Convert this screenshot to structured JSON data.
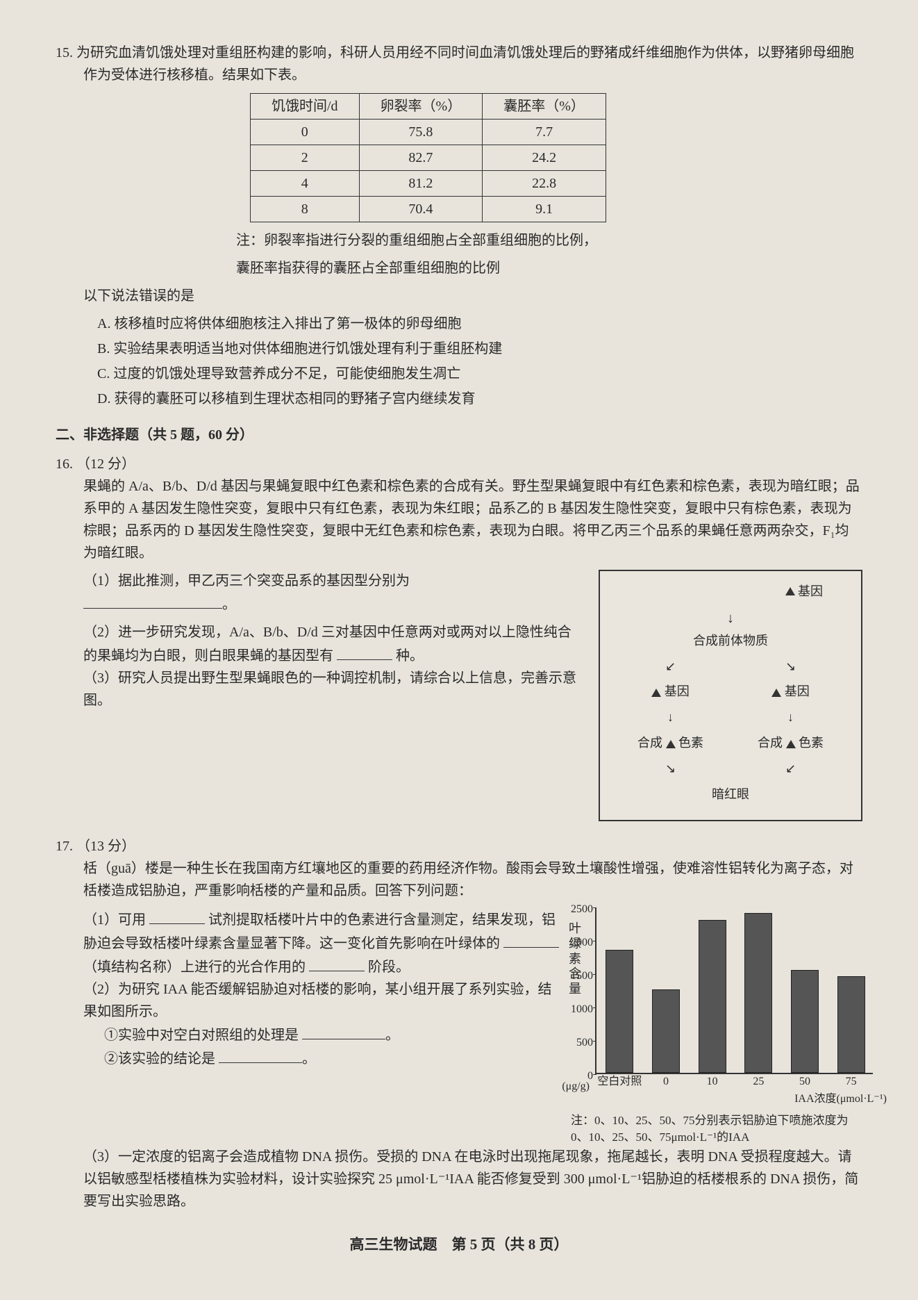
{
  "q15": {
    "number": "15.",
    "text": "为研究血清饥饿处理对重组胚构建的影响，科研人员用经不同时间血清饥饿处理后的野猪成纤维细胞作为供体，以野猪卵母细胞作为受体进行核移植。结果如下表。",
    "table": {
      "headers": [
        "饥饿时间/d",
        "卵裂率（%）",
        "囊胚率（%）"
      ],
      "rows": [
        [
          "0",
          "75.8",
          "7.7"
        ],
        [
          "2",
          "82.7",
          "24.2"
        ],
        [
          "4",
          "81.2",
          "22.8"
        ],
        [
          "8",
          "70.4",
          "9.1"
        ]
      ]
    },
    "note1": "注：卵裂率指进行分裂的重组细胞占全部重组细胞的比例，",
    "note2": "囊胚率指获得的囊胚占全部重组细胞的比例",
    "question": "以下说法错误的是",
    "options": {
      "A": "A. 核移植时应将供体细胞核注入排出了第一极体的卵母细胞",
      "B": "B. 实验结果表明适当地对供体细胞进行饥饿处理有利于重组胚构建",
      "C": "C. 过度的饥饿处理导致营养成分不足，可能使细胞发生凋亡",
      "D": "D. 获得的囊胚可以移植到生理状态相同的野猪子宫内继续发育"
    }
  },
  "section2": "二、非选择题（共 5 题，60 分）",
  "q16": {
    "number": "16.",
    "points": "（12 分）",
    "text": "果蝇的 A/a、B/b、D/d 基因与果蝇复眼中红色素和棕色素的合成有关。野生型果蝇复眼中有红色素和棕色素，表现为暗红眼；品系甲的 A 基因发生隐性突变，复眼中只有红色素，表现为朱红眼；品系乙的 B 基因发生隐性突变，复眼中只有棕色素，表现为棕眼；品系丙的 D 基因发生隐性突变，复眼中无红色素和棕色素，表现为白眼。将甲乙丙三个品系的果蝇任意两两杂交，F₁均为暗红眼。",
    "sub1_label": "（1）",
    "sub1": "据此推测，甲乙丙三个突变品系的基因型分别为",
    "sub2_label": "（2）",
    "sub2a": "进一步研究发现，A/a、B/b、D/d 三对基因中任意两对或两对以上隐性纯合的果蝇均为白眼，则白眼果蝇的基因型有",
    "sub2b": "种。",
    "sub3_label": "（3）",
    "sub3": "研究人员提出野生型果蝇眼色的一种调控机制，请综合以上信息，完善示意图。",
    "diagram": {
      "gene": "基因",
      "precursor": "合成前体物质",
      "synthesis": "合成",
      "pigment": "色素",
      "darkred": "暗红眼"
    }
  },
  "q17": {
    "number": "17.",
    "points": "（13 分）",
    "text": "栝（guā）楼是一种生长在我国南方红壤地区的重要的药用经济作物。酸雨会导致土壤酸性增强，使难溶性铝转化为离子态，对栝楼造成铝胁迫，严重影响栝楼的产量和品质。回答下列问题：",
    "sub1_label": "（1）",
    "sub1a": "可用",
    "sub1b": "试剂提取栝楼叶片中的色素进行含量测定，结果发现，铝胁迫会导致栝楼叶绿素含量显著下降。这一变化首先影响在叶绿体的",
    "sub1c": "（填结构名称）上进行的光合作用的",
    "sub1d": "阶段。",
    "sub2_label": "（2）",
    "sub2": "为研究 IAA 能否缓解铝胁迫对栝楼的影响，某小组开展了系列实验，结果如图所示。",
    "sub2_1": "①实验中对空白对照组的处理是",
    "sub2_2": "②该实验的结论是",
    "sub3_label": "（3）",
    "sub3": "一定浓度的铝离子会造成植物 DNA 损伤。受损的 DNA 在电泳时出现拖尾现象，拖尾越长，表明 DNA 受损程度越大。请以铝敏感型栝楼植株为实验材料，设计实验探究 25 μmol·L⁻¹IAA 能否修复受到 300 μmol·L⁻¹铝胁迫的栝楼根系的 DNA 损伤，简要写出实验思路。",
    "chart": {
      "y_title": "叶绿素含量",
      "y_unit": "(μg/g)",
      "y_ticks": [
        0,
        500,
        1000,
        1500,
        2000,
        2500
      ],
      "y_max": 2500,
      "x_labels": [
        "空白对照",
        "0",
        "10",
        "25",
        "50",
        "75"
      ],
      "x_title": "IAA浓度(μmol·L⁻¹)",
      "values": [
        1850,
        1250,
        2300,
        2400,
        1550,
        1450
      ],
      "bar_color": "#555555",
      "note": "注：0、10、25、50、75分别表示铝胁迫下喷施浓度为0、10、25、50、75μmol·L⁻¹的IAA"
    }
  },
  "footer": "高三生物试题　第 5 页（共 8 页）"
}
